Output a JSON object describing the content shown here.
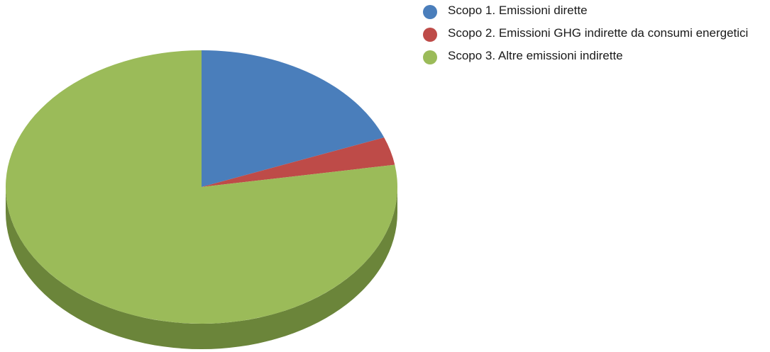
{
  "chart_data": {
    "type": "pie",
    "style": "3d",
    "legend_position": "top-right",
    "title": "",
    "series": [
      {
        "name": "Scopo 1. Emissioni dirette",
        "value": 19.1,
        "color": "#4a7ebb",
        "side_color": "#3a6496"
      },
      {
        "name": "Scopo 2. Emissioni GHG indirette da consumi energetici",
        "value": 3.3,
        "color": "#be4b48",
        "side_color": "#983b39"
      },
      {
        "name": "Scopo 3. Altre emissioni indirette",
        "value": 77.6,
        "color": "#9bbb59",
        "side_color": "#6b853a"
      }
    ]
  }
}
